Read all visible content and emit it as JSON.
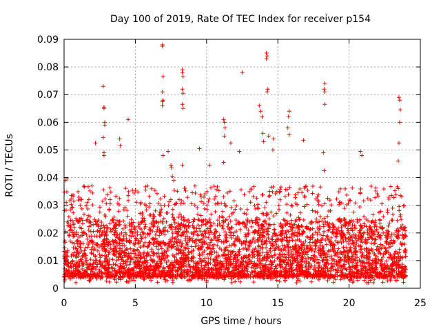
{
  "chart_data": {
    "type": "scatter",
    "title": "Day 100 of 2019, Rate Of TEC Index for receiver p154",
    "xlabel": "GPS time / hours",
    "ylabel": "ROTI / TECUs",
    "xlim": [
      0,
      25
    ],
    "ylim": [
      0,
      0.09
    ],
    "xticks": [
      0,
      5,
      10,
      15,
      20,
      25
    ],
    "xtick_labels": [
      "0",
      "5",
      "10",
      "15",
      "20",
      "25"
    ],
    "yticks": [
      0,
      0.01,
      0.02,
      0.03,
      0.04,
      0.05,
      0.06,
      0.07,
      0.08,
      0.09
    ],
    "ytick_labels": [
      "0",
      "0.01",
      "0.02",
      "0.03",
      "0.04",
      "0.05",
      "0.06",
      "0.07",
      "0.08",
      "0.09"
    ],
    "grid": true,
    "marker": "+",
    "color": "#ff0000",
    "data_range_x": [
      0,
      24
    ],
    "dense_band": {
      "typical_min": 0.004,
      "typical_max": 0.025
    },
    "outliers": [
      {
        "x": 0.1,
        "y": 0.039
      },
      {
        "x": 0.2,
        "y": 0.0395
      },
      {
        "x": 0.15,
        "y": 0.031
      },
      {
        "x": 2.2,
        "y": 0.0525
      },
      {
        "x": 2.75,
        "y": 0.073
      },
      {
        "x": 2.8,
        "y": 0.0655
      },
      {
        "x": 2.8,
        "y": 0.065
      },
      {
        "x": 2.85,
        "y": 0.06
      },
      {
        "x": 2.85,
        "y": 0.059
      },
      {
        "x": 2.75,
        "y": 0.0545
      },
      {
        "x": 2.8,
        "y": 0.049
      },
      {
        "x": 2.8,
        "y": 0.048
      },
      {
        "x": 3.9,
        "y": 0.054
      },
      {
        "x": 3.95,
        "y": 0.0515
      },
      {
        "x": 4.5,
        "y": 0.061
      },
      {
        "x": 6.9,
        "y": 0.088
      },
      {
        "x": 6.9,
        "y": 0.0875
      },
      {
        "x": 6.95,
        "y": 0.0765
      },
      {
        "x": 6.9,
        "y": 0.071
      },
      {
        "x": 6.95,
        "y": 0.068
      },
      {
        "x": 6.9,
        "y": 0.0675
      },
      {
        "x": 6.9,
        "y": 0.066
      },
      {
        "x": 6.95,
        "y": 0.048
      },
      {
        "x": 7.3,
        "y": 0.0495
      },
      {
        "x": 7.5,
        "y": 0.0445
      },
      {
        "x": 7.55,
        "y": 0.0435
      },
      {
        "x": 7.6,
        "y": 0.0405
      },
      {
        "x": 7.7,
        "y": 0.039
      },
      {
        "x": 8.3,
        "y": 0.079
      },
      {
        "x": 8.3,
        "y": 0.078
      },
      {
        "x": 8.35,
        "y": 0.0765
      },
      {
        "x": 8.3,
        "y": 0.072
      },
      {
        "x": 8.35,
        "y": 0.0705
      },
      {
        "x": 8.3,
        "y": 0.0665
      },
      {
        "x": 8.35,
        "y": 0.065
      },
      {
        "x": 8.3,
        "y": 0.0445
      },
      {
        "x": 9.5,
        "y": 0.0505
      },
      {
        "x": 10.2,
        "y": 0.0445
      },
      {
        "x": 11.2,
        "y": 0.061
      },
      {
        "x": 11.25,
        "y": 0.06
      },
      {
        "x": 11.3,
        "y": 0.058
      },
      {
        "x": 11.25,
        "y": 0.055
      },
      {
        "x": 11.2,
        "y": 0.0455
      },
      {
        "x": 11.7,
        "y": 0.0525
      },
      {
        "x": 12.5,
        "y": 0.078
      },
      {
        "x": 12.3,
        "y": 0.0495
      },
      {
        "x": 13.7,
        "y": 0.066
      },
      {
        "x": 13.8,
        "y": 0.064
      },
      {
        "x": 13.9,
        "y": 0.062
      },
      {
        "x": 13.95,
        "y": 0.056
      },
      {
        "x": 14.0,
        "y": 0.053
      },
      {
        "x": 14.2,
        "y": 0.085
      },
      {
        "x": 14.25,
        "y": 0.084
      },
      {
        "x": 14.2,
        "y": 0.083
      },
      {
        "x": 14.3,
        "y": 0.072
      },
      {
        "x": 14.25,
        "y": 0.071
      },
      {
        "x": 14.35,
        "y": 0.055
      },
      {
        "x": 14.7,
        "y": 0.054
      },
      {
        "x": 14.65,
        "y": 0.05
      },
      {
        "x": 15.8,
        "y": 0.064
      },
      {
        "x": 15.75,
        "y": 0.062
      },
      {
        "x": 15.7,
        "y": 0.058
      },
      {
        "x": 15.8,
        "y": 0.0555
      },
      {
        "x": 16.8,
        "y": 0.0535
      },
      {
        "x": 18.3,
        "y": 0.074
      },
      {
        "x": 18.25,
        "y": 0.072
      },
      {
        "x": 18.3,
        "y": 0.071
      },
      {
        "x": 18.3,
        "y": 0.0665
      },
      {
        "x": 18.2,
        "y": 0.049
      },
      {
        "x": 18.25,
        "y": 0.0425
      },
      {
        "x": 20.8,
        "y": 0.0495
      },
      {
        "x": 20.9,
        "y": 0.048
      },
      {
        "x": 23.5,
        "y": 0.069
      },
      {
        "x": 23.55,
        "y": 0.068
      },
      {
        "x": 23.6,
        "y": 0.0645
      },
      {
        "x": 23.55,
        "y": 0.06
      },
      {
        "x": 23.5,
        "y": 0.0525
      },
      {
        "x": 23.45,
        "y": 0.046
      }
    ]
  }
}
